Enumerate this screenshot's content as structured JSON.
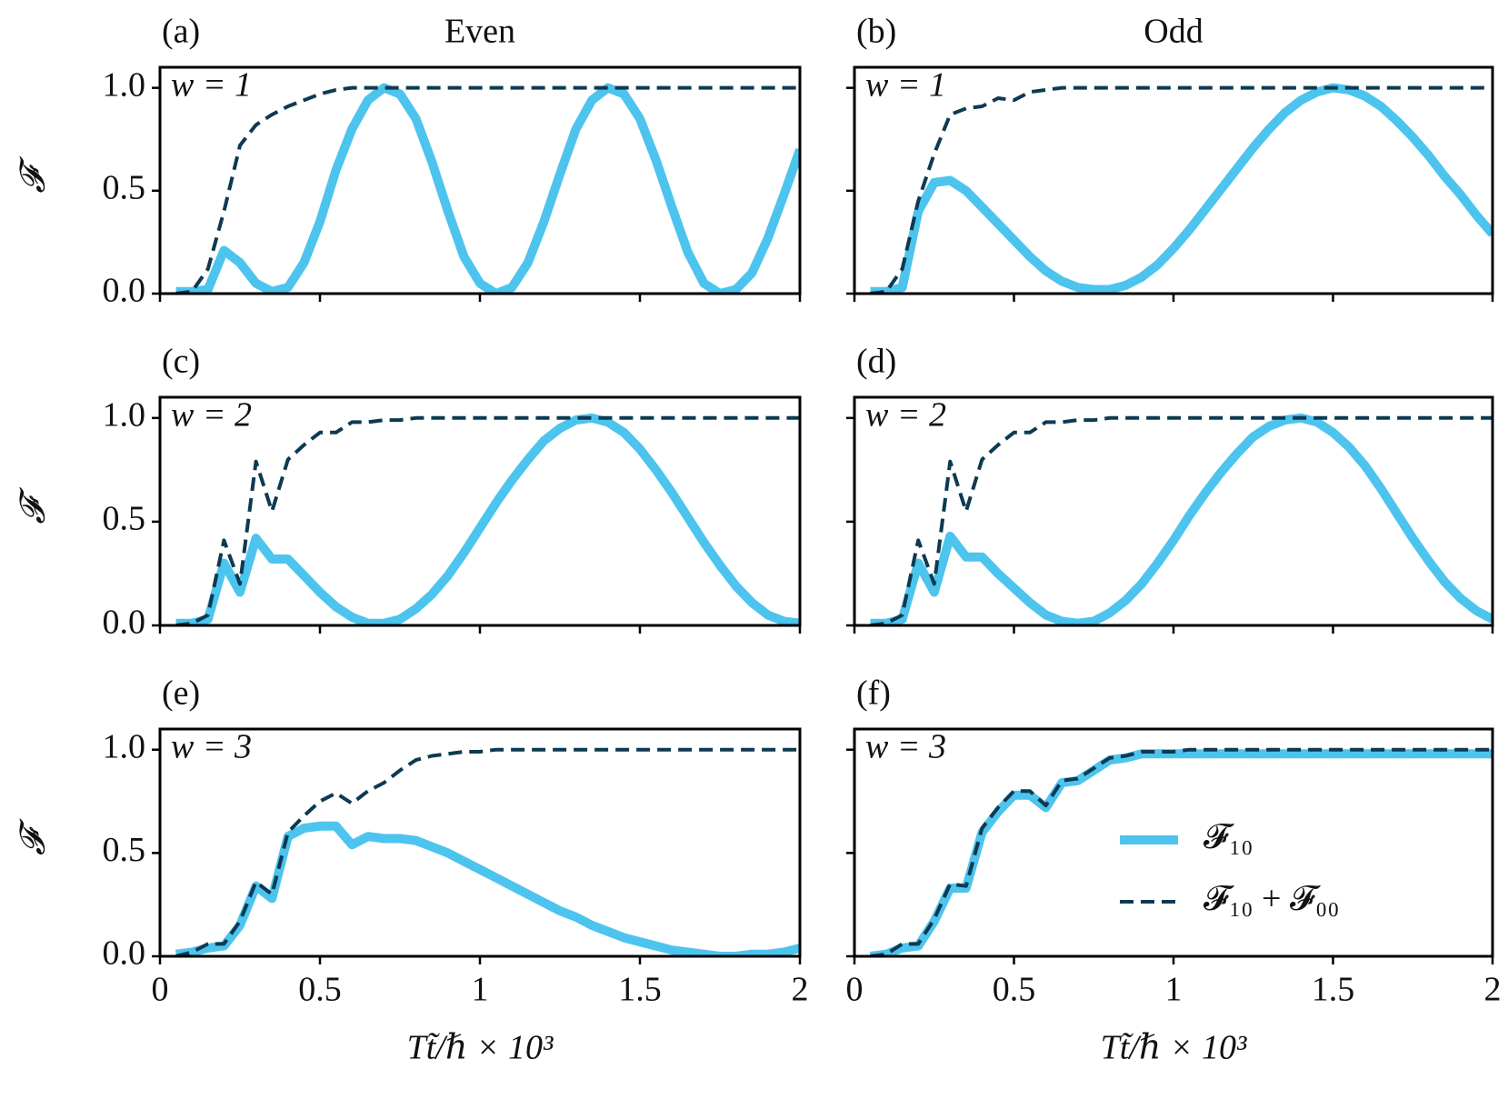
{
  "chart_data": [
    {
      "type": "line",
      "panel_label": "(a)",
      "title": "Even",
      "annotation": "w = 1",
      "ylabel": "𝓕",
      "x": [
        0.05,
        0.1,
        0.15,
        0.2,
        0.25,
        0.3,
        0.35,
        0.4,
        0.45,
        0.5,
        0.55,
        0.6,
        0.65,
        0.7,
        0.75,
        0.8,
        0.85,
        0.9,
        0.95,
        1.0,
        1.05,
        1.1,
        1.15,
        1.2,
        1.25,
        1.3,
        1.35,
        1.4,
        1.45,
        1.5,
        1.55,
        1.6,
        1.65,
        1.7,
        1.75,
        1.8,
        1.85,
        1.9,
        1.95,
        2.0
      ],
      "series": [
        {
          "color": "#4cc4ee",
          "style": "solid",
          "values": [
            0.01,
            0.01,
            0.02,
            0.21,
            0.15,
            0.05,
            0.01,
            0.03,
            0.15,
            0.35,
            0.6,
            0.8,
            0.94,
            1.0,
            0.97,
            0.85,
            0.64,
            0.4,
            0.18,
            0.05,
            0.0,
            0.03,
            0.15,
            0.35,
            0.58,
            0.8,
            0.94,
            1.0,
            0.97,
            0.85,
            0.65,
            0.42,
            0.2,
            0.05,
            0.0,
            0.02,
            0.1,
            0.27,
            0.48,
            0.7
          ]
        },
        {
          "color": "#0d3a52",
          "style": "dashed",
          "values": [
            0,
            0.01,
            0.12,
            0.4,
            0.72,
            0.82,
            0.87,
            0.91,
            0.94,
            0.97,
            0.99,
            1.0,
            1.0,
            1.0,
            1.0,
            1.0,
            1.0,
            1.0,
            1.0,
            1.0,
            1.0,
            1.0,
            1.0,
            1.0,
            1.0,
            1.0,
            1.0,
            1.0,
            1.0,
            1.0,
            1.0,
            1.0,
            1.0,
            1.0,
            1.0,
            1.0,
            1.0,
            1.0,
            1.0,
            1.0
          ]
        }
      ],
      "xlim": [
        0,
        2
      ],
      "ylim": [
        0,
        1.1
      ],
      "xticks": [
        0,
        0.5,
        1,
        1.5,
        2
      ],
      "yticks": [
        {
          "value": 0,
          "label": "0.0"
        },
        0.5,
        {
          "value": 1,
          "label": "1.0"
        }
      ]
    },
    {
      "type": "line",
      "panel_label": "(b)",
      "title": "Odd",
      "annotation": "w = 1",
      "x": [
        0.05,
        0.1,
        0.15,
        0.2,
        0.25,
        0.3,
        0.35,
        0.4,
        0.45,
        0.5,
        0.55,
        0.6,
        0.65,
        0.7,
        0.75,
        0.8,
        0.85,
        0.9,
        0.95,
        1.0,
        1.05,
        1.1,
        1.15,
        1.2,
        1.25,
        1.3,
        1.35,
        1.4,
        1.45,
        1.5,
        1.55,
        1.6,
        1.65,
        1.7,
        1.75,
        1.8,
        1.85,
        1.9,
        1.95,
        2.0
      ],
      "series": [
        {
          "color": "#4cc4ee",
          "style": "solid",
          "values": [
            0.01,
            0.01,
            0.03,
            0.4,
            0.54,
            0.55,
            0.5,
            0.42,
            0.34,
            0.26,
            0.18,
            0.11,
            0.06,
            0.03,
            0.02,
            0.02,
            0.04,
            0.08,
            0.14,
            0.22,
            0.31,
            0.41,
            0.51,
            0.61,
            0.71,
            0.8,
            0.88,
            0.94,
            0.98,
            1.0,
            0.99,
            0.96,
            0.91,
            0.84,
            0.76,
            0.67,
            0.57,
            0.48,
            0.38,
            0.29
          ]
        },
        {
          "color": "#0d3a52",
          "style": "dashed",
          "values": [
            0,
            0.01,
            0.12,
            0.45,
            0.68,
            0.87,
            0.9,
            0.91,
            0.95,
            0.94,
            0.98,
            0.99,
            1.0,
            1.0,
            1.0,
            1.0,
            1.0,
            1.0,
            1.0,
            1.0,
            1.0,
            1.0,
            1.0,
            1.0,
            1.0,
            1.0,
            1.0,
            1.0,
            1.0,
            1.0,
            1.0,
            1.0,
            1.0,
            1.0,
            1.0,
            1.0,
            1.0,
            1.0,
            1.0,
            1.0
          ]
        }
      ],
      "xlim": [
        0,
        2
      ],
      "ylim": [
        0,
        1.1
      ],
      "xticks": [
        0,
        0.5,
        1,
        1.5,
        2
      ],
      "yticks": [
        0,
        0.5,
        1
      ]
    },
    {
      "type": "line",
      "panel_label": "(c)",
      "annotation": "w = 2",
      "ylabel": "𝓕",
      "x": [
        0.05,
        0.1,
        0.15,
        0.2,
        0.25,
        0.3,
        0.35,
        0.4,
        0.45,
        0.5,
        0.55,
        0.6,
        0.65,
        0.7,
        0.75,
        0.8,
        0.85,
        0.9,
        0.95,
        1.0,
        1.05,
        1.1,
        1.15,
        1.2,
        1.25,
        1.3,
        1.35,
        1.4,
        1.45,
        1.5,
        1.55,
        1.6,
        1.65,
        1.7,
        1.75,
        1.8,
        1.85,
        1.9,
        1.95,
        2.0
      ],
      "series": [
        {
          "color": "#4cc4ee",
          "style": "solid",
          "values": [
            0.01,
            0.01,
            0.03,
            0.3,
            0.16,
            0.42,
            0.32,
            0.32,
            0.24,
            0.16,
            0.09,
            0.04,
            0.01,
            0.01,
            0.03,
            0.08,
            0.15,
            0.24,
            0.35,
            0.47,
            0.59,
            0.7,
            0.8,
            0.89,
            0.95,
            0.99,
            1.0,
            0.98,
            0.93,
            0.85,
            0.75,
            0.64,
            0.52,
            0.4,
            0.29,
            0.19,
            0.11,
            0.05,
            0.02,
            0.01
          ]
        },
        {
          "color": "#0d3a52",
          "style": "dashed",
          "values": [
            0,
            0.01,
            0.05,
            0.41,
            0.2,
            0.79,
            0.55,
            0.8,
            0.87,
            0.93,
            0.93,
            0.98,
            0.98,
            0.99,
            0.99,
            1.0,
            1.0,
            1.0,
            1.0,
            1.0,
            1.0,
            1.0,
            1.0,
            1.0,
            1.0,
            1.0,
            1.0,
            1.0,
            1.0,
            1.0,
            1.0,
            1.0,
            1.0,
            1.0,
            1.0,
            1.0,
            1.0,
            1.0,
            1.0,
            1.0
          ]
        }
      ],
      "xlim": [
        0,
        2
      ],
      "ylim": [
        0,
        1.1
      ],
      "xticks": [
        0,
        0.5,
        1,
        1.5,
        2
      ],
      "yticks": [
        {
          "value": 0,
          "label": "0.0"
        },
        0.5,
        {
          "value": 1,
          "label": "1.0"
        }
      ]
    },
    {
      "type": "line",
      "panel_label": "(d)",
      "annotation": "w = 2",
      "x": [
        0.05,
        0.1,
        0.15,
        0.2,
        0.25,
        0.3,
        0.35,
        0.4,
        0.45,
        0.5,
        0.55,
        0.6,
        0.65,
        0.7,
        0.75,
        0.8,
        0.85,
        0.9,
        0.95,
        1.0,
        1.05,
        1.1,
        1.15,
        1.2,
        1.25,
        1.3,
        1.35,
        1.4,
        1.45,
        1.5,
        1.55,
        1.6,
        1.65,
        1.7,
        1.75,
        1.8,
        1.85,
        1.9,
        1.95,
        2.0
      ],
      "series": [
        {
          "color": "#4cc4ee",
          "style": "solid",
          "values": [
            0.01,
            0.01,
            0.03,
            0.3,
            0.16,
            0.43,
            0.33,
            0.33,
            0.25,
            0.18,
            0.11,
            0.05,
            0.02,
            0.01,
            0.02,
            0.06,
            0.12,
            0.2,
            0.3,
            0.41,
            0.53,
            0.64,
            0.74,
            0.83,
            0.91,
            0.96,
            0.99,
            1.0,
            0.98,
            0.93,
            0.86,
            0.77,
            0.66,
            0.54,
            0.42,
            0.31,
            0.21,
            0.13,
            0.07,
            0.03
          ]
        },
        {
          "color": "#0d3a52",
          "style": "dashed",
          "values": [
            0,
            0.01,
            0.05,
            0.41,
            0.2,
            0.79,
            0.55,
            0.8,
            0.87,
            0.93,
            0.93,
            0.98,
            0.98,
            0.99,
            0.99,
            1.0,
            1.0,
            1.0,
            1.0,
            1.0,
            1.0,
            1.0,
            1.0,
            1.0,
            1.0,
            1.0,
            1.0,
            1.0,
            1.0,
            1.0,
            1.0,
            1.0,
            1.0,
            1.0,
            1.0,
            1.0,
            1.0,
            1.0,
            1.0,
            1.0
          ]
        }
      ],
      "xlim": [
        0,
        2
      ],
      "ylim": [
        0,
        1.1
      ],
      "xticks": [
        0,
        0.5,
        1,
        1.5,
        2
      ],
      "yticks": [
        0,
        0.5,
        1
      ]
    },
    {
      "type": "line",
      "panel_label": "(e)",
      "annotation": "w = 3",
      "ylabel": "𝓕",
      "xlabel": "Tt̃/ℏ × 10³",
      "x": [
        0.05,
        0.1,
        0.15,
        0.2,
        0.25,
        0.3,
        0.35,
        0.4,
        0.45,
        0.5,
        0.55,
        0.6,
        0.65,
        0.7,
        0.75,
        0.8,
        0.85,
        0.9,
        0.95,
        1.0,
        1.05,
        1.1,
        1.15,
        1.2,
        1.25,
        1.3,
        1.35,
        1.4,
        1.45,
        1.5,
        1.55,
        1.6,
        1.65,
        1.7,
        1.75,
        1.8,
        1.85,
        1.9,
        1.95,
        2.0
      ],
      "series": [
        {
          "color": "#4cc4ee",
          "style": "solid",
          "values": [
            0.01,
            0.02,
            0.04,
            0.05,
            0.15,
            0.34,
            0.28,
            0.58,
            0.62,
            0.63,
            0.63,
            0.54,
            0.58,
            0.57,
            0.57,
            0.56,
            0.53,
            0.5,
            0.46,
            0.42,
            0.38,
            0.34,
            0.3,
            0.26,
            0.22,
            0.19,
            0.15,
            0.12,
            0.09,
            0.07,
            0.05,
            0.03,
            0.02,
            0.01,
            0.0,
            0.0,
            0.01,
            0.01,
            0.02,
            0.04
          ]
        },
        {
          "color": "#0d3a52",
          "style": "dashed",
          "values": [
            0,
            0.02,
            0.06,
            0.06,
            0.17,
            0.36,
            0.3,
            0.6,
            0.68,
            0.75,
            0.79,
            0.74,
            0.8,
            0.84,
            0.9,
            0.95,
            0.97,
            0.98,
            0.99,
            0.99,
            1.0,
            1.0,
            1.0,
            1.0,
            1.0,
            1.0,
            1.0,
            1.0,
            1.0,
            1.0,
            1.0,
            1.0,
            1.0,
            1.0,
            1.0,
            1.0,
            1.0,
            1.0,
            1.0,
            1.0
          ]
        }
      ],
      "xlim": [
        0,
        2
      ],
      "ylim": [
        0,
        1.1
      ],
      "xticks": [
        0,
        0.5,
        1,
        1.5,
        2
      ],
      "yticks": [
        {
          "value": 0,
          "label": "0.0"
        },
        0.5,
        {
          "value": 1,
          "label": "1.0"
        }
      ]
    },
    {
      "type": "line",
      "panel_label": "(f)",
      "annotation": "w = 3",
      "xlabel": "Tt̃/ℏ × 10³",
      "legend": "lower right",
      "x": [
        0.05,
        0.1,
        0.15,
        0.2,
        0.25,
        0.3,
        0.35,
        0.4,
        0.45,
        0.5,
        0.55,
        0.6,
        0.65,
        0.7,
        0.75,
        0.8,
        0.85,
        0.9,
        0.95,
        1.0,
        1.05,
        1.1,
        1.15,
        1.2,
        1.25,
        1.3,
        1.35,
        1.4,
        1.45,
        1.5,
        1.55,
        1.6,
        1.65,
        1.7,
        1.75,
        1.8,
        1.85,
        1.9,
        1.95,
        2.0
      ],
      "series": [
        {
          "name": "𝓕₁₀",
          "color": "#4cc4ee",
          "style": "solid",
          "values": [
            0,
            0.01,
            0.04,
            0.05,
            0.17,
            0.33,
            0.33,
            0.6,
            0.7,
            0.78,
            0.78,
            0.72,
            0.84,
            0.85,
            0.9,
            0.95,
            0.96,
            0.98,
            0.98,
            0.98,
            0.98,
            0.98,
            0.98,
            0.98,
            0.98,
            0.98,
            0.98,
            0.98,
            0.98,
            0.98,
            0.98,
            0.98,
            0.98,
            0.98,
            0.98,
            0.98,
            0.98,
            0.98,
            0.98,
            0.98
          ]
        },
        {
          "name": "𝓕₁₀ + 𝓕₀₀",
          "color": "#0d3a52",
          "style": "dashed",
          "values": [
            0,
            0.01,
            0.06,
            0.06,
            0.18,
            0.35,
            0.34,
            0.62,
            0.72,
            0.8,
            0.8,
            0.73,
            0.85,
            0.86,
            0.91,
            0.96,
            0.97,
            0.99,
            0.99,
            0.99,
            1.0,
            1.0,
            1.0,
            1.0,
            1.0,
            1.0,
            1.0,
            1.0,
            1.0,
            1.0,
            1.0,
            1.0,
            1.0,
            1.0,
            1.0,
            1.0,
            1.0,
            1.0,
            1.0,
            1.0
          ]
        }
      ],
      "xlim": [
        0,
        2
      ],
      "ylim": [
        0,
        1.1
      ],
      "xticks": [
        0,
        0.5,
        1,
        1.5,
        2
      ],
      "yticks": [
        0,
        0.5,
        1
      ]
    }
  ]
}
